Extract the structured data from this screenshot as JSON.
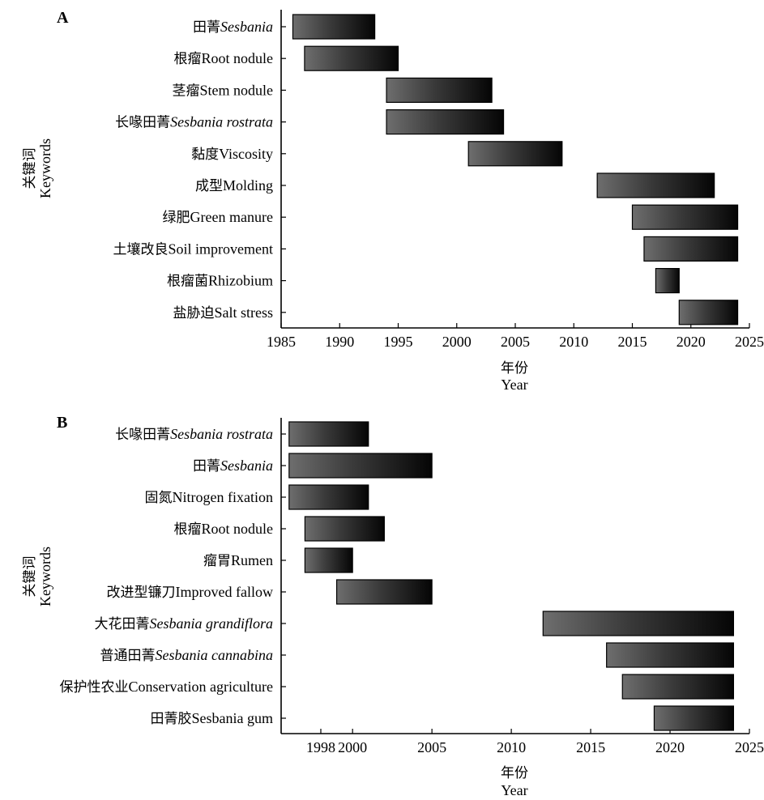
{
  "chart_data": [
    {
      "type": "bar",
      "panel_label": "A",
      "orientation": "horizontal",
      "xlabel": {
        "zh": "年份",
        "en": "Year"
      },
      "ylabel": {
        "zh": "关键词",
        "en": "Keywords"
      },
      "xlim": [
        1985,
        2025
      ],
      "xticks": [
        1985,
        1990,
        1995,
        2000,
        2005,
        2010,
        2015,
        2020,
        2025
      ],
      "grid": false,
      "series": [
        {
          "label_zh": "田菁",
          "label_en": "Sesbania",
          "italic": true,
          "start": 1986,
          "end": 1993
        },
        {
          "label_zh": "根瘤",
          "label_en": "Root nodule",
          "italic": false,
          "start": 1987,
          "end": 1995
        },
        {
          "label_zh": "茎瘤",
          "label_en": "Stem nodule",
          "italic": false,
          "start": 1994,
          "end": 2003
        },
        {
          "label_zh": "长喙田菁",
          "label_en": "Sesbania rostrata",
          "italic": true,
          "start": 1994,
          "end": 2004
        },
        {
          "label_zh": "黏度",
          "label_en": "Viscosity",
          "italic": false,
          "start": 2001,
          "end": 2009
        },
        {
          "label_zh": "成型",
          "label_en": "Molding",
          "italic": false,
          "start": 2012,
          "end": 2022
        },
        {
          "label_zh": "绿肥",
          "label_en": "Green manure",
          "italic": false,
          "start": 2015,
          "end": 2024
        },
        {
          "label_zh": "土壤改良",
          "label_en": "Soil improvement",
          "italic": false,
          "start": 2016,
          "end": 2024
        },
        {
          "label_zh": "根瘤菌",
          "label_en": "Rhizobium",
          "italic": false,
          "start": 2017,
          "end": 2019
        },
        {
          "label_zh": "盐胁迫",
          "label_en": "Salt stress",
          "italic": false,
          "start": 2019,
          "end": 2024
        }
      ]
    },
    {
      "type": "bar",
      "panel_label": "B",
      "orientation": "horizontal",
      "xlabel": {
        "zh": "年份",
        "en": "Year"
      },
      "ylabel": {
        "zh": "关键词",
        "en": "Keywords"
      },
      "xlim": [
        1995,
        2025
      ],
      "xticks": [
        1998,
        2000,
        2005,
        2010,
        2015,
        2020,
        2025
      ],
      "grid": false,
      "series": [
        {
          "label_zh": "长喙田菁",
          "label_en": "Sesbania rostrata",
          "italic": true,
          "start": 1996,
          "end": 2001
        },
        {
          "label_zh": "田菁",
          "label_en": "Sesbania",
          "italic": true,
          "start": 1996,
          "end": 2005
        },
        {
          "label_zh": "固氮",
          "label_en": "Nitrogen fixation",
          "italic": false,
          "start": 1996,
          "end": 2001
        },
        {
          "label_zh": "根瘤",
          "label_en": "Root nodule",
          "italic": false,
          "start": 1997,
          "end": 2002
        },
        {
          "label_zh": "瘤胃",
          "label_en": "Rumen",
          "italic": false,
          "start": 1997,
          "end": 2000
        },
        {
          "label_zh": "改进型镰刀",
          "label_en": "Improved fallow",
          "italic": false,
          "start": 1999,
          "end": 2005
        },
        {
          "label_zh": "大花田菁",
          "label_en": "Sesbania grandiflora",
          "italic": true,
          "start": 2012,
          "end": 2024
        },
        {
          "label_zh": "普通田菁",
          "label_en": "Sesbania cannabina",
          "italic": true,
          "start": 2016,
          "end": 2024
        },
        {
          "label_zh": "保护性农业",
          "label_en": "Conservation agriculture",
          "italic": false,
          "start": 2017,
          "end": 2024
        },
        {
          "label_zh": "田菁胶",
          "label_en": "Sesbania gum",
          "italic": false,
          "start": 2019,
          "end": 2024
        }
      ]
    }
  ]
}
